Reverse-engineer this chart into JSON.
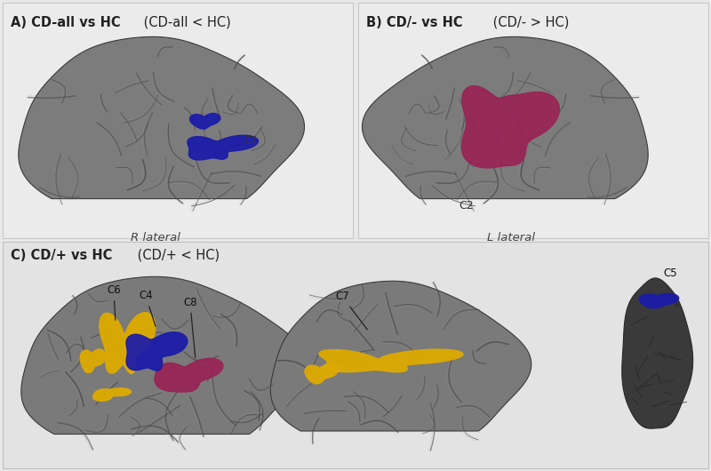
{
  "bg_top": "#e8e8e8",
  "bg_bottom": "#dcdcdc",
  "panel_line_color": "#c0c0c0",
  "color_blue": "#1a1aaa",
  "color_magenta": "#992255",
  "color_gold": "#ddaa00",
  "text_dark": "#222222",
  "title_A_bold": "A) CD-all vs HC",
  "title_A_norm": " (CD-all < HC)",
  "title_B_bold": "B) CD/- vs HC",
  "title_B_norm": " (CD/- > HC)",
  "title_C_bold": "C) CD/+ vs HC",
  "title_C_norm": " (CD/+ < HC)",
  "label_R": "R lateral",
  "label_L": "L lateral"
}
